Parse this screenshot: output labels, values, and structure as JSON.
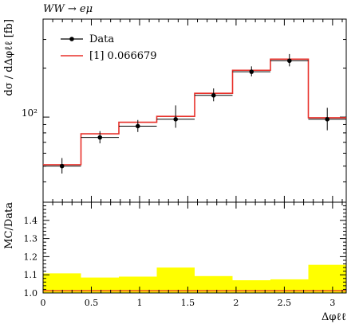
{
  "header": {
    "process_label": "WW → eμ"
  },
  "chart_data": [
    {
      "type": "line",
      "panel": "main",
      "ylabel": "dσ / dΔφℓℓ [fb]",
      "yscale": "log",
      "ylim": [
        30,
        400
      ],
      "xlim": [
        0,
        3.1416
      ],
      "y_tick_labels": [
        "10²"
      ],
      "legend": {
        "placement": "top-left",
        "entries": [
          {
            "label": "Data",
            "color": "#000000",
            "marker": "point-with-errorbar"
          },
          {
            "label": "[1] 0.066679",
            "color": "#e8302a",
            "marker": "line"
          }
        ]
      },
      "bin_edges": [
        0,
        0.3927,
        0.7854,
        1.1781,
        1.5708,
        1.9635,
        2.3562,
        2.7489,
        3.1416
      ],
      "series": [
        {
          "name": "Data",
          "color": "#000000",
          "x": [
            0.196,
            0.589,
            0.982,
            1.374,
            1.767,
            2.16,
            2.553,
            2.945
          ],
          "values": [
            50,
            75,
            88,
            97,
            136,
            190,
            222,
            97
          ],
          "err_low": [
            45,
            69,
            81,
            86,
            125,
            178,
            205,
            83
          ],
          "err_high": [
            56,
            82,
            96,
            118,
            150,
            205,
            244,
            114
          ]
        },
        {
          "name": "[1] 0.066679",
          "color": "#e8302a",
          "values": [
            51,
            79,
            93,
            101,
            140,
            194,
            227,
            99
          ]
        }
      ]
    },
    {
      "type": "area",
      "panel": "ratio",
      "xlabel": "Δφℓℓ",
      "ylabel": "MC/Data",
      "xlim": [
        0,
        3.1416
      ],
      "ylim": [
        1.0,
        1.5
      ],
      "x_tick_labels": [
        "0",
        "0.5",
        "1",
        "1.5",
        "2",
        "2.5",
        "3"
      ],
      "y_tick_labels": [
        "1.0",
        "1.1",
        "1.2",
        "1.3",
        "1.4"
      ],
      "band_color": "#ffff00",
      "line_color": "#e8302a",
      "bin_edges": [
        0,
        0.3927,
        0.7854,
        1.1781,
        1.5708,
        1.9635,
        2.3562,
        2.7489,
        3.1416
      ],
      "band_high": [
        1.108,
        1.085,
        1.09,
        1.14,
        1.093,
        1.07,
        1.075,
        1.155
      ],
      "band_low": [
        0.992,
        0.994,
        0.994,
        0.994,
        0.994,
        0.994,
        0.994,
        0.992
      ],
      "ratio": [
        1.012,
        1.012,
        1.012,
        1.012,
        1.012,
        1.012,
        1.012,
        1.012
      ]
    }
  ]
}
